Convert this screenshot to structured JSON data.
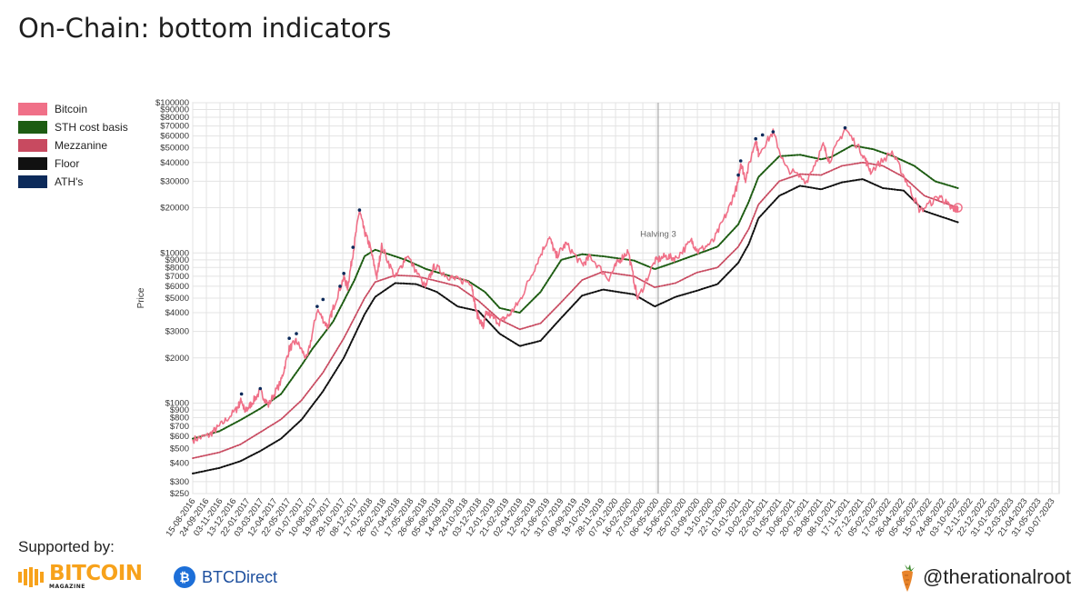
{
  "page": {
    "title": "On-Chain: bottom indicators",
    "supported_by": "Supported by:",
    "sponsor1_main": "BITCOIN",
    "sponsor1_sub": "MAGAZINE",
    "sponsor2": "BTCDirect",
    "handle": "@therationalroot"
  },
  "colors": {
    "bitcoin": "#f07088",
    "sth": "#1d5c12",
    "mezzanine": "#c84a60",
    "floor": "#111111",
    "ath": "#0c2a5a",
    "grid": "#e3e3e3",
    "halving": "#aaaaaa"
  },
  "chart_data": {
    "type": "line",
    "title": "",
    "xlabel": "",
    "ylabel": "Price",
    "yscale": "log",
    "ylim": [
      250,
      100000
    ],
    "y_ticks": [
      250,
      300,
      400,
      500,
      600,
      700,
      800,
      900,
      1000,
      2000,
      3000,
      4000,
      5000,
      6000,
      7000,
      8000,
      9000,
      10000,
      20000,
      30000,
      40000,
      50000,
      60000,
      70000,
      80000,
      90000,
      100000
    ],
    "y_tick_labels": [
      "$250",
      "$300",
      "$400",
      "$500",
      "$600",
      "$700",
      "$800",
      "$900",
      "$1000",
      "$2000",
      "$3000",
      "$4000",
      "$5000",
      "$6000",
      "$7000",
      "$8000",
      "$9000",
      "$10000",
      "$20000",
      "$30000",
      "$40000",
      "$50000",
      "$60000",
      "$70000",
      "$80000",
      "$90000",
      "$100000"
    ],
    "x_tick_labels": [
      "15-08-2016",
      "24-09-2016",
      "03-11-2016",
      "13-12-2016",
      "22-01-2017",
      "03-03-2017",
      "12-04-2017",
      "22-05-2017",
      "01-07-2017",
      "10-08-2017",
      "19-09-2017",
      "29-10-2017",
      "08-12-2017",
      "17-01-2018",
      "26-02-2018",
      "07-04-2018",
      "17-05-2018",
      "26-06-2018",
      "05-08-2018",
      "14-09-2018",
      "24-10-2018",
      "03-12-2018",
      "12-01-2019",
      "21-02-2019",
      "02-04-2019",
      "12-05-2019",
      "21-06-2019",
      "31-07-2019",
      "09-09-2019",
      "19-10-2019",
      "28-11-2019",
      "07-01-2020",
      "16-02-2020",
      "27-03-2020",
      "06-05-2020",
      "15-06-2020",
      "25-07-2020",
      "03-09-2020",
      "13-10-2020",
      "22-11-2020",
      "01-01-2021",
      "10-02-2021",
      "22-03-2021",
      "01-05-2021",
      "10-06-2021",
      "20-07-2021",
      "29-08-2021",
      "08-10-2021",
      "17-11-2021",
      "27-12-2021",
      "05-02-2022",
      "17-03-2022",
      "26-04-2022",
      "05-06-2022",
      "15-07-2022",
      "24-08-2022",
      "03-10-2022",
      "12-11-2022",
      "22-12-2022",
      "31-01-2023",
      "12-03-2023",
      "21-04-2023",
      "31-05-2023",
      "10-07-2023"
    ],
    "x_range": [
      "15-08-2016",
      "31-07-2023"
    ],
    "grid": true,
    "legend_position": "left",
    "annotations": [
      {
        "text": "Halving 3",
        "x": "11-05-2020"
      }
    ],
    "series": [
      {
        "name": "Bitcoin",
        "color": "#f07088",
        "points": [
          [
            "15-08-2016",
            570
          ],
          [
            "01-10-2016",
            610
          ],
          [
            "01-11-2016",
            700
          ],
          [
            "20-12-2016",
            900
          ],
          [
            "05-01-2017",
            1050
          ],
          [
            "15-01-2017",
            870
          ],
          [
            "01-02-2017",
            980
          ],
          [
            "01-03-2017",
            1200
          ],
          [
            "25-03-2017",
            970
          ],
          [
            "01-05-2017",
            1400
          ],
          [
            "25-05-2017",
            2300
          ],
          [
            "15-06-2017",
            2600
          ],
          [
            "16-07-2017",
            1950
          ],
          [
            "15-08-2017",
            4200
          ],
          [
            "15-09-2017",
            3200
          ],
          [
            "01-10-2017",
            4300
          ],
          [
            "01-11-2017",
            6900
          ],
          [
            "12-11-2017",
            5900
          ],
          [
            "28-11-2017",
            10000
          ],
          [
            "17-12-2017",
            19300
          ],
          [
            "31-12-2017",
            14000
          ],
          [
            "17-01-2018",
            11000
          ],
          [
            "06-02-2018",
            6900
          ],
          [
            "20-02-2018",
            11100
          ],
          [
            "01-04-2018",
            6800
          ],
          [
            "05-05-2018",
            9700
          ],
          [
            "28-06-2018",
            5900
          ],
          [
            "25-07-2018",
            8200
          ],
          [
            "01-09-2018",
            7000
          ],
          [
            "01-10-2018",
            6600
          ],
          [
            "10-11-2018",
            6400
          ],
          [
            "25-11-2018",
            4000
          ],
          [
            "15-12-2018",
            3200
          ],
          [
            "24-12-2018",
            4000
          ],
          [
            "31-01-2019",
            3450
          ],
          [
            "01-03-2019",
            3850
          ],
          [
            "01-04-2019",
            4800
          ],
          [
            "15-05-2019",
            8000
          ],
          [
            "26-06-2019",
            12900
          ],
          [
            "17-07-2019",
            9500
          ],
          [
            "15-08-2019",
            11500
          ],
          [
            "01-10-2019",
            8300
          ],
          [
            "25-10-2019",
            9500
          ],
          [
            "17-12-2019",
            6700
          ],
          [
            "14-01-2020",
            8700
          ],
          [
            "13-02-2020",
            10300
          ],
          [
            "12-03-2020",
            4900
          ],
          [
            "01-05-2020",
            8800
          ],
          [
            "01-06-2020",
            9500
          ],
          [
            "01-07-2020",
            9200
          ],
          [
            "17-08-2020",
            12000
          ],
          [
            "05-09-2020",
            10200
          ],
          [
            "20-10-2020",
            12000
          ],
          [
            "01-12-2020",
            19000
          ],
          [
            "31-12-2020",
            29000
          ],
          [
            "08-01-2021",
            40000
          ],
          [
            "22-01-2021",
            31000
          ],
          [
            "21-02-2021",
            57000
          ],
          [
            "01-03-2021",
            46000
          ],
          [
            "13-04-2021",
            63500
          ],
          [
            "19-05-2021",
            37000
          ],
          [
            "20-07-2021",
            30000
          ],
          [
            "07-09-2021",
            52000
          ],
          [
            "25-09-2021",
            41000
          ],
          [
            "10-11-2021",
            67500
          ],
          [
            "31-12-2021",
            46000
          ],
          [
            "24-01-2022",
            35000
          ],
          [
            "28-03-2022",
            47000
          ],
          [
            "12-05-2022",
            29000
          ],
          [
            "18-06-2022",
            19000
          ],
          [
            "15-08-2022",
            24000
          ],
          [
            "15-09-2022",
            20000
          ],
          [
            "01-10-2022",
            19500
          ],
          [
            "07-10-2022",
            20000
          ]
        ]
      },
      {
        "name": "STH cost basis",
        "color": "#1d5c12",
        "points": [
          [
            "15-08-2016",
            580
          ],
          [
            "01-11-2016",
            650
          ],
          [
            "01-01-2017",
            770
          ],
          [
            "01-03-2017",
            920
          ],
          [
            "01-05-2017",
            1150
          ],
          [
            "01-07-2017",
            1800
          ],
          [
            "01-08-2017",
            2300
          ],
          [
            "01-10-2017",
            3500
          ],
          [
            "01-12-2017",
            6500
          ],
          [
            "01-01-2018",
            9500
          ],
          [
            "01-02-2018",
            10500
          ],
          [
            "01-03-2018",
            10000
          ],
          [
            "01-05-2018",
            9000
          ],
          [
            "01-07-2018",
            7800
          ],
          [
            "01-09-2018",
            7100
          ],
          [
            "01-11-2018",
            6500
          ],
          [
            "20-12-2018",
            5500
          ],
          [
            "01-02-2019",
            4300
          ],
          [
            "01-04-2019",
            4000
          ],
          [
            "01-06-2019",
            5500
          ],
          [
            "01-08-2019",
            9000
          ],
          [
            "01-10-2019",
            9800
          ],
          [
            "01-12-2019",
            9500
          ],
          [
            "01-03-2020",
            8900
          ],
          [
            "01-05-2020",
            7800
          ],
          [
            "01-07-2020",
            8700
          ],
          [
            "01-09-2020",
            9800
          ],
          [
            "01-11-2020",
            11000
          ],
          [
            "01-01-2021",
            15500
          ],
          [
            "01-02-2021",
            22000
          ],
          [
            "01-03-2021",
            32000
          ],
          [
            "01-05-2021",
            44000
          ],
          [
            "01-07-2021",
            45000
          ],
          [
            "01-09-2021",
            42000
          ],
          [
            "01-10-2021",
            43500
          ],
          [
            "01-12-2021",
            52000
          ],
          [
            "01-02-2022",
            49000
          ],
          [
            "01-04-2022",
            44000
          ],
          [
            "01-06-2022",
            38000
          ],
          [
            "01-08-2022",
            30000
          ],
          [
            "07-10-2022",
            27000
          ]
        ]
      },
      {
        "name": "Mezzanine",
        "color": "#c84a60",
        "points": [
          [
            "15-08-2016",
            430
          ],
          [
            "01-11-2016",
            470
          ],
          [
            "01-01-2017",
            530
          ],
          [
            "01-03-2017",
            640
          ],
          [
            "01-05-2017",
            780
          ],
          [
            "01-07-2017",
            1050
          ],
          [
            "01-09-2017",
            1600
          ],
          [
            "01-11-2017",
            2700
          ],
          [
            "01-01-2018",
            5000
          ],
          [
            "01-02-2018",
            6400
          ],
          [
            "01-04-2018",
            7100
          ],
          [
            "01-06-2018",
            7000
          ],
          [
            "01-08-2018",
            6500
          ],
          [
            "01-10-2018",
            6000
          ],
          [
            "01-12-2018",
            4800
          ],
          [
            "01-02-2019",
            3600
          ],
          [
            "01-04-2019",
            3100
          ],
          [
            "01-06-2019",
            3400
          ],
          [
            "01-08-2019",
            4700
          ],
          [
            "01-10-2019",
            6600
          ],
          [
            "01-12-2019",
            7500
          ],
          [
            "01-03-2020",
            7000
          ],
          [
            "01-05-2020",
            5900
          ],
          [
            "01-07-2020",
            6300
          ],
          [
            "01-09-2020",
            7400
          ],
          [
            "01-11-2020",
            8000
          ],
          [
            "01-01-2021",
            11000
          ],
          [
            "01-02-2021",
            14500
          ],
          [
            "01-03-2021",
            21000
          ],
          [
            "01-05-2021",
            30000
          ],
          [
            "01-07-2021",
            33500
          ],
          [
            "01-09-2021",
            33000
          ],
          [
            "01-11-2021",
            38000
          ],
          [
            "01-01-2022",
            40000
          ],
          [
            "01-03-2022",
            38000
          ],
          [
            "01-05-2022",
            32000
          ],
          [
            "01-07-2022",
            24000
          ],
          [
            "07-10-2022",
            20000
          ]
        ]
      },
      {
        "name": "Floor",
        "color": "#111111",
        "points": [
          [
            "15-08-2016",
            340
          ],
          [
            "01-11-2016",
            370
          ],
          [
            "01-01-2017",
            410
          ],
          [
            "01-03-2017",
            480
          ],
          [
            "01-05-2017",
            580
          ],
          [
            "01-07-2017",
            780
          ],
          [
            "01-09-2017",
            1200
          ],
          [
            "01-11-2017",
            2000
          ],
          [
            "01-01-2018",
            3900
          ],
          [
            "01-02-2018",
            5100
          ],
          [
            "01-04-2018",
            6300
          ],
          [
            "01-06-2018",
            6200
          ],
          [
            "01-08-2018",
            5500
          ],
          [
            "01-10-2018",
            4400
          ],
          [
            "01-12-2018",
            4100
          ],
          [
            "01-02-2019",
            2900
          ],
          [
            "01-04-2019",
            2400
          ],
          [
            "01-06-2019",
            2600
          ],
          [
            "01-08-2019",
            3700
          ],
          [
            "01-10-2019",
            5200
          ],
          [
            "01-12-2019",
            5700
          ],
          [
            "01-03-2020",
            5300
          ],
          [
            "01-05-2020",
            4400
          ],
          [
            "01-07-2020",
            5100
          ],
          [
            "01-09-2020",
            5600
          ],
          [
            "01-11-2020",
            6200
          ],
          [
            "01-01-2021",
            8600
          ],
          [
            "01-02-2021",
            11500
          ],
          [
            "01-03-2021",
            17000
          ],
          [
            "01-05-2021",
            24000
          ],
          [
            "01-07-2021",
            28000
          ],
          [
            "01-09-2021",
            26500
          ],
          [
            "01-11-2021",
            29500
          ],
          [
            "01-01-2022",
            31000
          ],
          [
            "01-03-2022",
            27000
          ],
          [
            "01-05-2022",
            26000
          ],
          [
            "01-07-2022",
            19000
          ],
          [
            "07-10-2022",
            16000
          ]
        ]
      },
      {
        "name": "ATH's",
        "color": "#0c2a5a",
        "points": [
          [
            "05-01-2017",
            1150
          ],
          [
            "01-03-2017",
            1250
          ],
          [
            "25-05-2017",
            2700
          ],
          [
            "15-06-2017",
            2900
          ],
          [
            "15-08-2017",
            4400
          ],
          [
            "01-09-2017",
            4900
          ],
          [
            "21-10-2017",
            6000
          ],
          [
            "01-11-2017",
            7300
          ],
          [
            "28-11-2017",
            10900
          ],
          [
            "17-12-2017",
            19300
          ],
          [
            "01-01-2021",
            33000
          ],
          [
            "08-01-2021",
            41000
          ],
          [
            "21-02-2021",
            57500
          ],
          [
            "13-03-2021",
            61000
          ],
          [
            "13-04-2021",
            64000
          ],
          [
            "10-11-2021",
            68000
          ]
        ]
      }
    ]
  }
}
